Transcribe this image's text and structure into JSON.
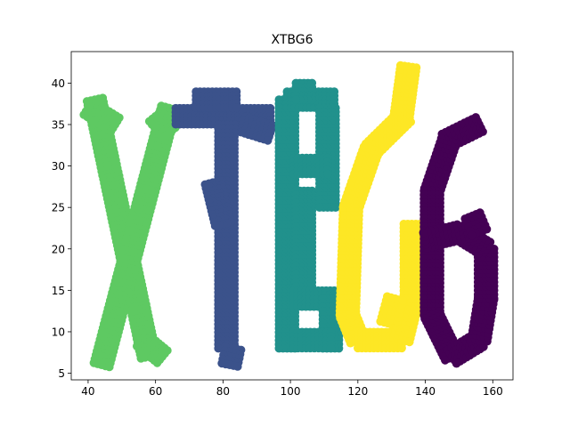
{
  "chart_data": {
    "type": "scatter",
    "title": "XTBG6",
    "xlabel": "",
    "ylabel": "",
    "xlim": [
      35,
      166
    ],
    "ylim": [
      4.2,
      43.8
    ],
    "xticks": [
      40,
      60,
      80,
      100,
      120,
      140,
      160
    ],
    "yticks": [
      5,
      10,
      15,
      20,
      25,
      30,
      35,
      40
    ],
    "grid": false,
    "legend": "none",
    "letters": [
      {
        "color": "#5ec962",
        "strokes": [
          {
            "from": [
              42,
              38
            ],
            "to": [
              58,
              7
            ]
          },
          {
            "from": [
              64,
              37
            ],
            "to": [
              44,
              6
            ]
          },
          {
            "from": [
              40,
              37
            ],
            "to": [
              48,
              35
            ]
          },
          {
            "from": [
              60,
              36
            ],
            "to": [
              64,
              34
            ]
          },
          {
            "from": [
              56,
              9
            ],
            "to": [
              62,
              7
            ]
          }
        ]
      },
      {
        "color": "#3b528b",
        "strokes": [
          {
            "from": [
              66,
              36
            ],
            "to": [
              94,
              36
            ]
          },
          {
            "from": [
              72,
              38
            ],
            "to": [
              84,
              38
            ]
          },
          {
            "from": [
              86,
              35
            ],
            "to": [
              94,
              34
            ]
          },
          {
            "from": [
              81,
              35
            ],
            "to": [
              81,
              8
            ]
          },
          {
            "from": [
              77,
              28
            ],
            "to": [
              80,
              23
            ]
          },
          {
            "from": [
              83,
              8
            ],
            "to": [
              82,
              6
            ]
          }
        ]
      },
      {
        "color": "#21918c",
        "strokes": [
          {
            "from": [
              99,
              38
            ],
            "to": [
              99,
              8
            ]
          },
          {
            "from": [
              99,
              38
            ],
            "to": [
              113,
              38
            ]
          },
          {
            "from": [
              104,
              40
            ],
            "to": [
              104,
              38
            ]
          },
          {
            "from": [
              111,
              37
            ],
            "to": [
              111,
              25
            ]
          },
          {
            "from": [
              101,
              30
            ],
            "to": [
              111,
              30
            ]
          },
          {
            "from": [
              104,
              27
            ],
            "to": [
              104,
              15
            ]
          },
          {
            "from": [
              101,
              14
            ],
            "to": [
              113,
              14
            ]
          },
          {
            "from": [
              112,
              14
            ],
            "to": [
              112,
              8
            ]
          },
          {
            "from": [
              101,
              9
            ],
            "to": [
              112,
              9
            ]
          }
        ]
      },
      {
        "color": "#fde725",
        "strokes": [
          {
            "from": [
              135,
              42
            ],
            "to": [
              133,
              36
            ]
          },
          {
            "from": [
              134,
              36
            ],
            "to": [
              124,
              32
            ]
          },
          {
            "from": [
              124,
              32
            ],
            "to": [
              118,
              25
            ]
          },
          {
            "from": [
              118,
              25
            ],
            "to": [
              117,
              12
            ]
          },
          {
            "from": [
              117,
              12
            ],
            "to": [
              120,
              9
            ]
          },
          {
            "from": [
              120,
              9
            ],
            "to": [
              133,
              9
            ]
          },
          {
            "from": [
              133,
              9
            ],
            "to": [
              136,
              14
            ]
          },
          {
            "from": [
              136,
              14
            ],
            "to": [
              136,
              23
            ]
          },
          {
            "from": [
              129,
              11
            ],
            "to": [
              131,
              14
            ]
          }
        ]
      },
      {
        "color": "#440154",
        "strokes": [
          {
            "from": [
              156,
              35
            ],
            "to": [
              146,
              33
            ]
          },
          {
            "from": [
              147,
              33
            ],
            "to": [
              142,
              27
            ]
          },
          {
            "from": [
              142,
              27
            ],
            "to": [
              142,
              12
            ]
          },
          {
            "from": [
              142,
              12
            ],
            "to": [
              148,
              7
            ]
          },
          {
            "from": [
              148,
              7
            ],
            "to": [
              156,
              9
            ]
          },
          {
            "from": [
              156,
              9
            ],
            "to": [
              158,
              14
            ]
          },
          {
            "from": [
              158,
              14
            ],
            "to": [
              158,
              20
            ]
          },
          {
            "from": [
              158,
              20
            ],
            "to": [
              150,
              22
            ]
          },
          {
            "from": [
              150,
              22
            ],
            "to": [
              140,
              21
            ]
          },
          {
            "from": [
              154,
              24
            ],
            "to": [
              156,
              22
            ]
          }
        ]
      }
    ]
  }
}
